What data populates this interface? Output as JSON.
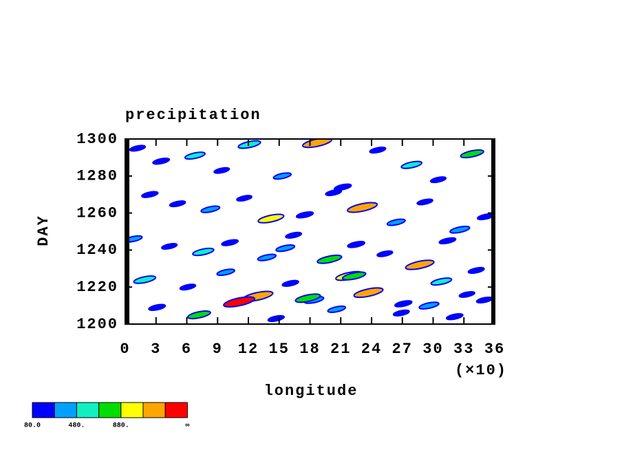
{
  "chart_data": {
    "type": "hovmoller",
    "title": "precipitation",
    "x_label": "longitude",
    "x_multiplier": "(×10)",
    "y_label": "DAY",
    "xlim": [
      0,
      36
    ],
    "xticks": [
      0,
      3,
      6,
      9,
      12,
      15,
      18,
      21,
      24,
      27,
      30,
      33,
      36
    ],
    "ylim": [
      1200,
      1300
    ],
    "yticks": [
      1200,
      1220,
      1240,
      1260,
      1280,
      1300
    ],
    "field": {
      "x": [
        1.2,
        3.5,
        6.8,
        9.4,
        12.1,
        15.3,
        18.7,
        21.2,
        24.6,
        27.9,
        30.5,
        33.8,
        2.4,
        5.1,
        8.3,
        11.6,
        14.2,
        17.5,
        20.3,
        23.1,
        26.4,
        29.2,
        32.6,
        35.1,
        0.8,
        4.3,
        7.6,
        10.2,
        13.8,
        16.4,
        19.9,
        22.5,
        25.3,
        28.7,
        31.4,
        34.2,
        1.9,
        6.1,
        9.8,
        12.9,
        16.1,
        18.4,
        21.8,
        24.2,
        27.1,
        30.8,
        33.3,
        3.1,
        7.2,
        11.1,
        14.7,
        17.8,
        20.6,
        23.7,
        26.9,
        29.6,
        32.1,
        35.0,
        15.6,
        22.3
      ],
      "y": [
        1295,
        1288,
        1291,
        1283,
        1297,
        1280,
        1298,
        1274,
        1294,
        1286,
        1278,
        1292,
        1270,
        1265,
        1262,
        1268,
        1257,
        1259,
        1271,
        1263,
        1255,
        1266,
        1251,
        1258,
        1246,
        1242,
        1239,
        1244,
        1236,
        1248,
        1235,
        1243,
        1238,
        1232,
        1245,
        1229,
        1224,
        1220,
        1228,
        1215,
        1222,
        1213,
        1226,
        1218,
        1211,
        1223,
        1216,
        1209,
        1205,
        1212,
        1203,
        1214,
        1208,
        1217,
        1206,
        1210,
        1204,
        1213,
        1241,
        1226
      ],
      "values": [
        150,
        220,
        480,
        130,
        650,
        300,
        1150,
        250,
        180,
        520,
        140,
        700,
        200,
        160,
        380,
        110,
        900,
        240,
        170,
        1200,
        330,
        150,
        450,
        190,
        280,
        130,
        560,
        210,
        350,
        170,
        800,
        260,
        140,
        1100,
        220,
        180,
        620,
        150,
        300,
        1250,
        200,
        420,
        950,
        170,
        260,
        520,
        140,
        230,
        680,
        1300,
        190,
        850,
        310,
        1150,
        170,
        450,
        210,
        160,
        380,
        720
      ]
    },
    "colorbar": {
      "colors": [
        "#0000ff",
        "#00a0ff",
        "#10f0c0",
        "#00dd00",
        "#ffff00",
        "#ffa500",
        "#ff0000"
      ],
      "start": 80,
      "step": 200,
      "ticks": [
        {
          "value": 80,
          "label": "80.0"
        },
        {
          "value": 480,
          "label": "480."
        },
        {
          "value": 880,
          "label": "880."
        },
        {
          "label": "∞"
        }
      ]
    }
  }
}
